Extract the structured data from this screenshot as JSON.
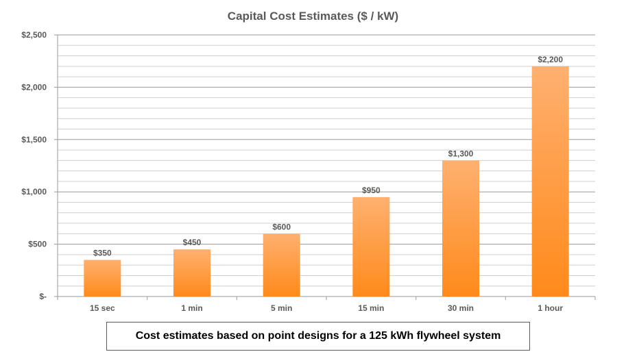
{
  "chart_data": {
    "type": "bar",
    "title": "Capital Cost Estimates ($ / kW)",
    "categories": [
      "15 sec",
      "1 min",
      "5 min",
      "15 min",
      "30 min",
      "1 hour"
    ],
    "values": [
      350,
      450,
      600,
      950,
      1300,
      2200
    ],
    "value_labels": [
      "$350",
      "$450",
      "$600",
      "$950",
      "$1,300",
      "$2,200"
    ],
    "ylim": [
      0,
      2500
    ],
    "yticks": [
      0,
      500,
      1000,
      1500,
      2000,
      2500
    ],
    "ytick_labels": [
      "$-",
      "$500",
      "$1,000",
      "$1,500",
      "$2,000",
      "$2,500"
    ],
    "grid": true,
    "legend": "none",
    "bar_color_top": "#FFB070",
    "bar_color_bottom": "#FF8A1A"
  },
  "caption": "Cost estimates based on point designs for a 125 kWh flywheel system"
}
